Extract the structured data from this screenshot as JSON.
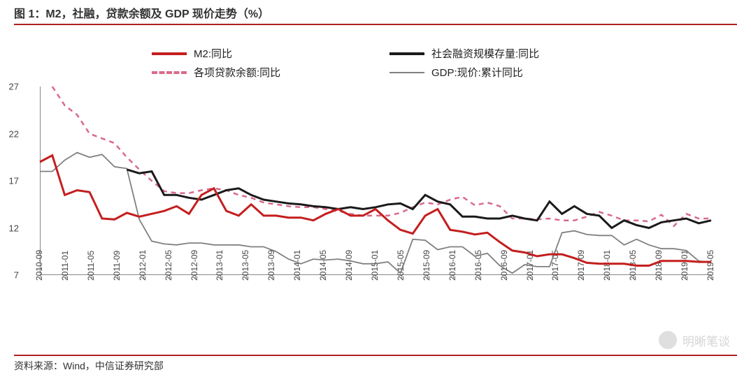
{
  "title": "图 1：M2，社融，贷款余额及 GDP 现价走势（%）",
  "source": "资料来源：Wind，中信证券研究部",
  "watermark": "明晰笔谈",
  "chart": {
    "type": "line",
    "ylim": [
      7,
      27
    ],
    "yticks": [
      7,
      12,
      17,
      22,
      27
    ],
    "xlabels": [
      "2010-09",
      "2011-01",
      "2011-05",
      "2011-09",
      "2012-01",
      "2012-05",
      "2012-09",
      "2013-01",
      "2013-05",
      "2013-09",
      "2014-01",
      "2014-05",
      "2014-09",
      "2015-01",
      "2015-05",
      "2015-09",
      "2016-01",
      "2016-05",
      "2016-09",
      "2017-01",
      "2017-05",
      "2017-09",
      "2018-01",
      "2018-05",
      "2018-09",
      "2019-01",
      "2019-05"
    ],
    "x_count": 27,
    "colors": {
      "m2": "#c41e1e",
      "social": "#1a1a1a",
      "loans": "#d96a8a",
      "gdp": "#808080",
      "axis": "#888888",
      "text": "#333333",
      "border": "#b02020"
    },
    "line_widths": {
      "m2": 3.0,
      "social": 3.0,
      "loans": 2.5,
      "gdp": 1.8
    },
    "dash": {
      "loans": "7,6"
    },
    "legend_items": [
      {
        "label": "M2:同比",
        "color": "#c41e1e",
        "style": "solid",
        "width": 4
      },
      {
        "label": "社会融资规模存量:同比",
        "color": "#1a1a1a",
        "style": "solid",
        "width": 4
      },
      {
        "label": "各项贷款余额:同比",
        "color": "#d96a8a",
        "style": "dashed",
        "width": 4
      },
      {
        "label": "GDP:现价:累计同比",
        "color": "#808080",
        "style": "solid",
        "width": 2
      }
    ],
    "series": {
      "m2": [
        19.0,
        19.7,
        15.5,
        16.0,
        15.8,
        13.0,
        12.9,
        13.6,
        13.2,
        13.5,
        13.8,
        14.3,
        13.5,
        15.5,
        16.2,
        13.8,
        13.3,
        14.5,
        13.3,
        13.3,
        13.1,
        13.1,
        12.8,
        13.5,
        14.0,
        13.3,
        13.3,
        14.0,
        12.8,
        11.8,
        11.4,
        13.3,
        14.0,
        11.8,
        11.6,
        11.3,
        11.5,
        10.5,
        9.6,
        9.4,
        9.0,
        9.2,
        9.2,
        8.8,
        8.3,
        8.2,
        8.2,
        8.2,
        8.0,
        8.0,
        8.5,
        8.5,
        8.5,
        8.4,
        8.4
      ],
      "social": [
        null,
        null,
        null,
        null,
        null,
        null,
        null,
        18.2,
        17.8,
        18.0,
        15.5,
        15.5,
        15.2,
        15.0,
        15.5,
        16.0,
        16.2,
        15.5,
        15.0,
        14.8,
        14.6,
        14.5,
        14.3,
        14.2,
        14.0,
        14.2,
        14.0,
        14.2,
        14.5,
        14.6,
        14.0,
        15.5,
        14.8,
        14.5,
        13.2,
        13.2,
        13.0,
        13.0,
        13.3,
        13.0,
        12.8,
        14.8,
        13.5,
        14.3,
        13.5,
        13.3,
        12.0,
        12.8,
        12.3,
        12.0,
        12.6,
        12.8,
        13.0,
        12.5,
        12.8
      ],
      "loans": [
        null,
        27.0,
        25.0,
        24.0,
        22.0,
        21.5,
        21.0,
        19.5,
        18.2,
        17.0,
        15.9,
        15.7,
        15.7,
        16.0,
        16.2,
        16.0,
        15.5,
        15.2,
        14.7,
        14.5,
        14.3,
        14.2,
        14.2,
        14.0,
        13.8,
        13.5,
        13.3,
        13.3,
        13.3,
        13.6,
        14.2,
        14.7,
        14.5,
        15.0,
        15.3,
        14.4,
        14.7,
        14.3,
        13.0,
        13.0,
        12.9,
        13.0,
        12.8,
        12.8,
        13.2,
        13.7,
        13.3,
        12.8,
        12.8,
        12.7,
        13.4,
        12.2,
        13.5,
        13.0,
        13.0
      ],
      "gdp": [
        18.0,
        18.0,
        19.2,
        20.0,
        19.5,
        19.8,
        18.5,
        18.3,
        12.9,
        10.6,
        10.3,
        10.2,
        10.4,
        10.4,
        10.2,
        10.2,
        10.2,
        10.0,
        10.0,
        9.5,
        8.7,
        8.2,
        8.7,
        8.6,
        8.7,
        8.5,
        8.2,
        8.2,
        8.4,
        7.2,
        10.8,
        10.7,
        9.7,
        10.0,
        10.0,
        9.0,
        9.3,
        8.0,
        7.2,
        8.1,
        7.9,
        7.9,
        11.5,
        11.7,
        11.3,
        11.2,
        11.2,
        10.2,
        10.8,
        10.2,
        9.8,
        9.8,
        9.6,
        8.5,
        8.3
      ]
    }
  }
}
